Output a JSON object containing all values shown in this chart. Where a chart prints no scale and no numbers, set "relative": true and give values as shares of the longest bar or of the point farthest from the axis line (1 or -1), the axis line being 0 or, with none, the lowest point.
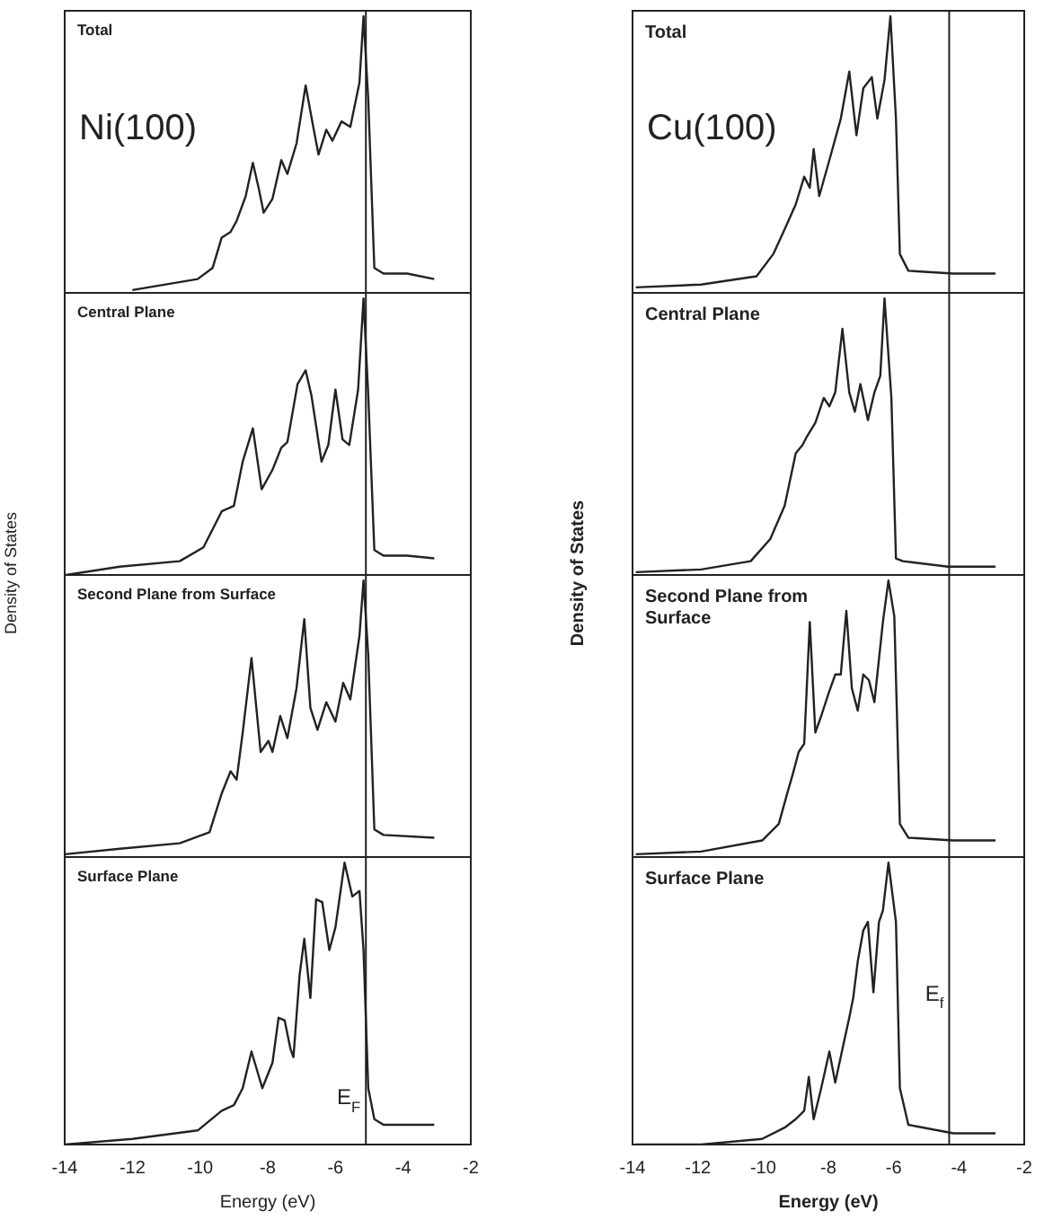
{
  "chart_data": [
    {
      "type": "line",
      "title": "Total",
      "annotations": [
        "Ni(100)"
      ],
      "relative": true,
      "color": "#222222",
      "xlim": [
        -14,
        -2
      ],
      "xticks": [
        -14,
        -12,
        -10,
        -8,
        -6,
        -4,
        -2
      ],
      "tick_labels": false,
      "ref_lines": [
        {
          "axis": "x",
          "value": -5.1
        }
      ],
      "x": [
        -12.0,
        -10.07,
        -9.63,
        -9.36,
        -9.1,
        -8.92,
        -8.65,
        -8.44,
        -8.27,
        -8.12,
        -7.86,
        -7.6,
        -7.42,
        -7.15,
        -6.88,
        -6.67,
        -6.5,
        -6.27,
        -6.09,
        -5.82,
        -5.56,
        -5.29,
        -5.17,
        -5.03,
        -4.85,
        -4.58,
        -3.88,
        -3.08
      ],
      "values": [
        0.01,
        0.05,
        0.09,
        0.2,
        0.22,
        0.26,
        0.35,
        0.47,
        0.38,
        0.29,
        0.34,
        0.48,
        0.43,
        0.54,
        0.75,
        0.61,
        0.5,
        0.59,
        0.55,
        0.62,
        0.6,
        0.76,
        1.0,
        0.7,
        0.09,
        0.07,
        0.07,
        0.05
      ]
    },
    {
      "type": "line",
      "title": "Central Plane",
      "relative": true,
      "color": "#222222",
      "xlim": [
        -14,
        -2
      ],
      "xticks": [
        -14,
        -12,
        -10,
        -8,
        -6,
        -4,
        -2
      ],
      "tick_labels": false,
      "ref_lines": [
        {
          "axis": "x",
          "value": -5.1
        }
      ],
      "x": [
        -13.96,
        -12.37,
        -10.6,
        -9.9,
        -9.36,
        -9.0,
        -8.74,
        -8.44,
        -8.18,
        -7.86,
        -7.6,
        -7.42,
        -7.12,
        -6.88,
        -6.71,
        -6.41,
        -6.21,
        -6.0,
        -5.79,
        -5.59,
        -5.33,
        -5.17,
        -5.03,
        -4.85,
        -4.58,
        -3.88,
        -3.08
      ],
      "values": [
        0.0,
        0.03,
        0.05,
        0.1,
        0.23,
        0.25,
        0.41,
        0.53,
        0.31,
        0.38,
        0.46,
        0.48,
        0.69,
        0.74,
        0.65,
        0.41,
        0.47,
        0.67,
        0.49,
        0.47,
        0.67,
        1.0,
        0.65,
        0.09,
        0.07,
        0.07,
        0.06
      ]
    },
    {
      "type": "line",
      "title": "Second Plane from Surface",
      "ylabel": "Density of States",
      "relative": true,
      "color": "#222222",
      "xlim": [
        -14,
        -2
      ],
      "xticks": [
        -14,
        -12,
        -10,
        -8,
        -6,
        -4,
        -2
      ],
      "tick_labels": false,
      "ref_lines": [
        {
          "axis": "x",
          "value": -5.1
        }
      ],
      "x": [
        -14.0,
        -12.37,
        -10.6,
        -9.72,
        -9.36,
        -9.1,
        -8.92,
        -8.74,
        -8.48,
        -8.21,
        -7.98,
        -7.86,
        -7.63,
        -7.42,
        -7.15,
        -6.92,
        -6.74,
        -6.53,
        -6.27,
        -6.0,
        -5.77,
        -5.56,
        -5.29,
        -5.17,
        -5.03,
        -4.85,
        -4.58,
        -3.08
      ],
      "values": [
        0.01,
        0.03,
        0.05,
        0.09,
        0.23,
        0.31,
        0.28,
        0.45,
        0.72,
        0.38,
        0.42,
        0.38,
        0.51,
        0.43,
        0.61,
        0.86,
        0.54,
        0.46,
        0.56,
        0.49,
        0.63,
        0.57,
        0.8,
        1.0,
        0.73,
        0.1,
        0.08,
        0.07
      ]
    },
    {
      "type": "line",
      "title": "Surface Plane",
      "xlabel": "Energy (eV)",
      "relative": true,
      "color": "#222222",
      "xlim": [
        -14,
        -2
      ],
      "xticks": [
        -14,
        -12,
        -10,
        -8,
        -6,
        -4,
        -2
      ],
      "tick_labels": "x",
      "ref_lines": [
        {
          "axis": "x",
          "value": -5.1,
          "label": "E$_{F}$"
        }
      ],
      "x": [
        -14.0,
        -12.0,
        -10.07,
        -9.36,
        -9.0,
        -8.74,
        -8.48,
        -8.16,
        -7.86,
        -7.68,
        -7.5,
        -7.33,
        -7.24,
        -7.06,
        -6.92,
        -6.74,
        -6.57,
        -6.39,
        -6.18,
        -6.0,
        -5.73,
        -5.5,
        -5.29,
        -5.17,
        -5.03,
        -4.85,
        -4.58,
        -3.08
      ],
      "values": [
        0.0,
        0.02,
        0.05,
        0.12,
        0.14,
        0.2,
        0.33,
        0.2,
        0.29,
        0.45,
        0.44,
        0.34,
        0.31,
        0.6,
        0.73,
        0.52,
        0.87,
        0.86,
        0.69,
        0.77,
        1.0,
        0.88,
        0.9,
        0.69,
        0.2,
        0.09,
        0.07,
        0.07
      ]
    },
    {
      "type": "line",
      "title": "Total",
      "annotations": [
        "Cu(100)"
      ],
      "relative": true,
      "color": "#222222",
      "xlim": [
        -14,
        -2
      ],
      "xticks": [
        -14,
        -12,
        -10,
        -8,
        -6,
        -4,
        -2
      ],
      "tick_labels": false,
      "ref_lines": [
        {
          "axis": "x",
          "value": -4.3
        }
      ],
      "x": [
        -13.9,
        -11.9,
        -10.2,
        -9.69,
        -9.34,
        -9.0,
        -8.74,
        -8.57,
        -8.45,
        -8.28,
        -7.97,
        -7.62,
        -7.36,
        -7.14,
        -6.93,
        -6.67,
        -6.5,
        -6.28,
        -6.1,
        -5.93,
        -5.81,
        -5.55,
        -4.17,
        -2.88
      ],
      "values": [
        0.02,
        0.03,
        0.06,
        0.14,
        0.23,
        0.32,
        0.42,
        0.38,
        0.52,
        0.35,
        0.48,
        0.63,
        0.8,
        0.57,
        0.74,
        0.78,
        0.63,
        0.77,
        1.0,
        0.63,
        0.14,
        0.08,
        0.07,
        0.07
      ]
    },
    {
      "type": "line",
      "title": "Central Plane",
      "relative": true,
      "color": "#222222",
      "xlim": [
        -14,
        -2
      ],
      "xticks": [
        -14,
        -12,
        -10,
        -8,
        -6,
        -4,
        -2
      ],
      "tick_labels": false,
      "ref_lines": [
        {
          "axis": "x",
          "value": -4.3
        }
      ],
      "x": [
        -13.9,
        -11.9,
        -10.38,
        -9.78,
        -9.34,
        -9.0,
        -8.79,
        -8.66,
        -8.4,
        -8.14,
        -7.97,
        -7.79,
        -7.57,
        -7.36,
        -7.19,
        -7.02,
        -6.79,
        -6.59,
        -6.41,
        -6.28,
        -6.07,
        -5.93,
        -5.72,
        -4.34,
        -2.88
      ],
      "values": [
        0.01,
        0.02,
        0.05,
        0.13,
        0.25,
        0.44,
        0.47,
        0.5,
        0.55,
        0.64,
        0.61,
        0.66,
        0.89,
        0.66,
        0.59,
        0.69,
        0.56,
        0.66,
        0.72,
        1.0,
        0.64,
        0.06,
        0.05,
        0.03,
        0.03
      ]
    },
    {
      "type": "line",
      "title": "Second Plane from Surface",
      "ylabel": "Density of States",
      "relative": true,
      "color": "#222222",
      "xlim": [
        -14,
        -2
      ],
      "xticks": [
        -14,
        -12,
        -10,
        -8,
        -6,
        -4,
        -2
      ],
      "tick_labels": false,
      "ref_lines": [
        {
          "axis": "x",
          "value": -4.3
        }
      ],
      "x": [
        -13.9,
        -11.9,
        -10.03,
        -9.52,
        -9.26,
        -9.09,
        -8.91,
        -8.74,
        -8.57,
        -8.4,
        -8.22,
        -8.0,
        -7.79,
        -7.62,
        -7.45,
        -7.28,
        -7.1,
        -6.93,
        -6.76,
        -6.59,
        -6.33,
        -6.16,
        -5.98,
        -5.81,
        -5.55,
        -4.17,
        -2.88
      ],
      "values": [
        0.01,
        0.02,
        0.06,
        0.12,
        0.23,
        0.3,
        0.38,
        0.41,
        0.85,
        0.45,
        0.51,
        0.59,
        0.66,
        0.66,
        0.89,
        0.61,
        0.53,
        0.66,
        0.64,
        0.56,
        0.85,
        1.0,
        0.87,
        0.12,
        0.07,
        0.06,
        0.06
      ]
    },
    {
      "type": "line",
      "title": "Surface Plane",
      "xlabel": "Energy (eV)",
      "relative": true,
      "color": "#222222",
      "xlim": [
        -14,
        -2
      ],
      "xticks": [
        -14,
        -12,
        -10,
        -8,
        -6,
        -4,
        -2
      ],
      "tick_labels": "x",
      "ref_lines": [
        {
          "axis": "x",
          "value": -4.3,
          "label": "E$_{f}$"
        }
      ],
      "x": [
        -13.9,
        -11.9,
        -10.03,
        -9.34,
        -9.0,
        -8.74,
        -8.6,
        -8.45,
        -8.22,
        -7.97,
        -7.79,
        -7.53,
        -7.36,
        -7.24,
        -7.1,
        -6.93,
        -6.79,
        -6.62,
        -6.45,
        -6.33,
        -6.16,
        -5.93,
        -5.81,
        -5.55,
        -4.17,
        -2.88
      ],
      "values": [
        0.0,
        0.0,
        0.02,
        0.06,
        0.09,
        0.12,
        0.24,
        0.09,
        0.2,
        0.33,
        0.22,
        0.36,
        0.45,
        0.52,
        0.65,
        0.76,
        0.79,
        0.54,
        0.79,
        0.83,
        1.0,
        0.79,
        0.2,
        0.07,
        0.04,
        0.04
      ]
    }
  ]
}
